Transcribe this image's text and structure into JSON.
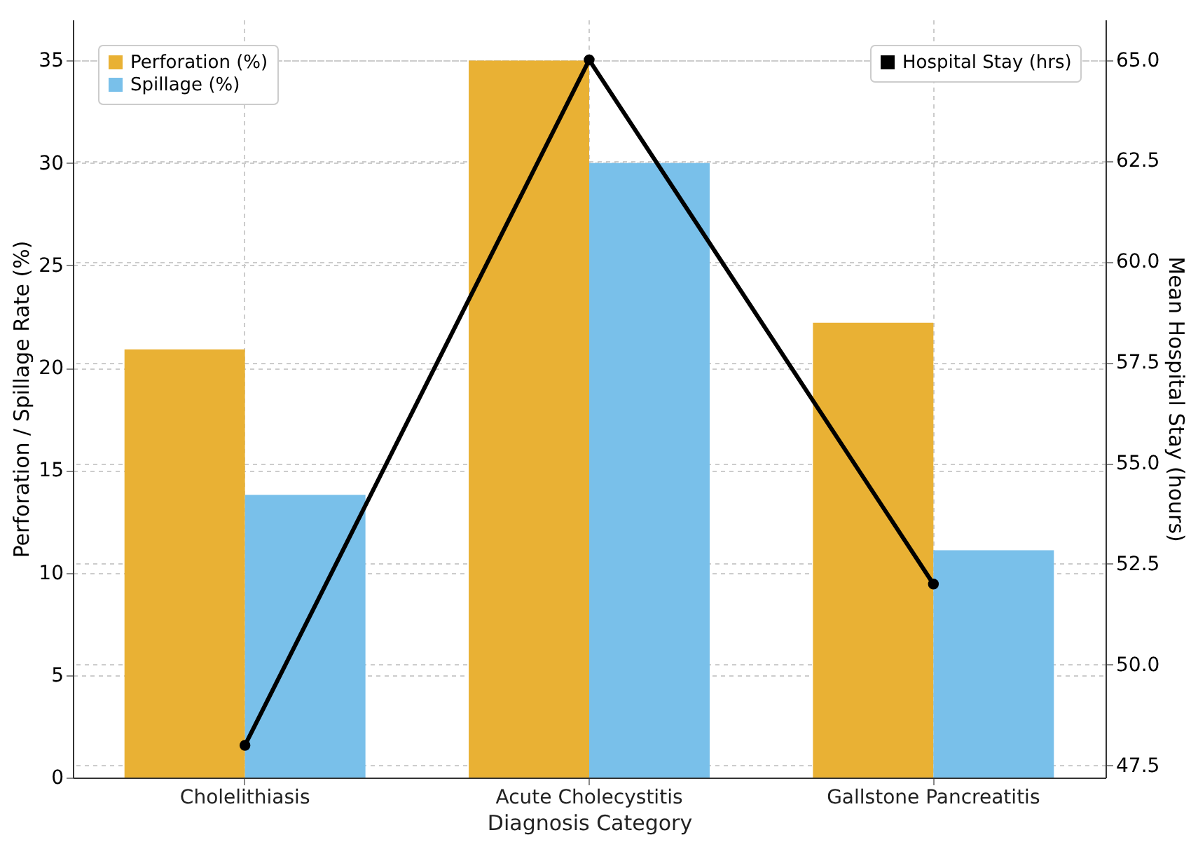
{
  "chart_data": {
    "type": "bar",
    "xlabel": "Diagnosis Category",
    "ylabel": "Perforation / Spillage Rate (%)",
    "y2label": "Mean Hospital Stay (hours)",
    "categories": [
      "Cholelithiasis",
      "Acute Cholecystitis",
      "Gallstone Pancreatitis"
    ],
    "series": [
      {
        "name": "Perforation (%)",
        "color": "#e9b134",
        "values": [
          20.9,
          35,
          22.2
        ]
      },
      {
        "name": "Spillage (%)",
        "color": "#79c0ea",
        "values": [
          13.8,
          30,
          11.1
        ]
      },
      {
        "name": "Hospital Stay (hrs)",
        "type": "line",
        "axis": "y2",
        "color": "#000000",
        "marker": "circle",
        "values": [
          48,
          65,
          52
        ]
      }
    ],
    "ylim": [
      0,
      37
    ],
    "yticks": [
      0,
      5,
      10,
      15,
      20,
      25,
      30,
      35
    ],
    "y2lim": [
      47.2,
      66
    ],
    "y2ticks": [
      {
        "value": 47.5,
        "label": "47.5"
      },
      {
        "value": 50,
        "label": "50.0"
      },
      {
        "value": 52.5,
        "label": "52.5"
      },
      {
        "value": 55,
        "label": "55.0"
      },
      {
        "value": 57.5,
        "label": "57.5"
      },
      {
        "value": 60,
        "label": "60.0"
      },
      {
        "value": 62.5,
        "label": "62.5"
      },
      {
        "value": 65,
        "label": "65.0"
      }
    ],
    "grid": true,
    "legend": "top"
  }
}
